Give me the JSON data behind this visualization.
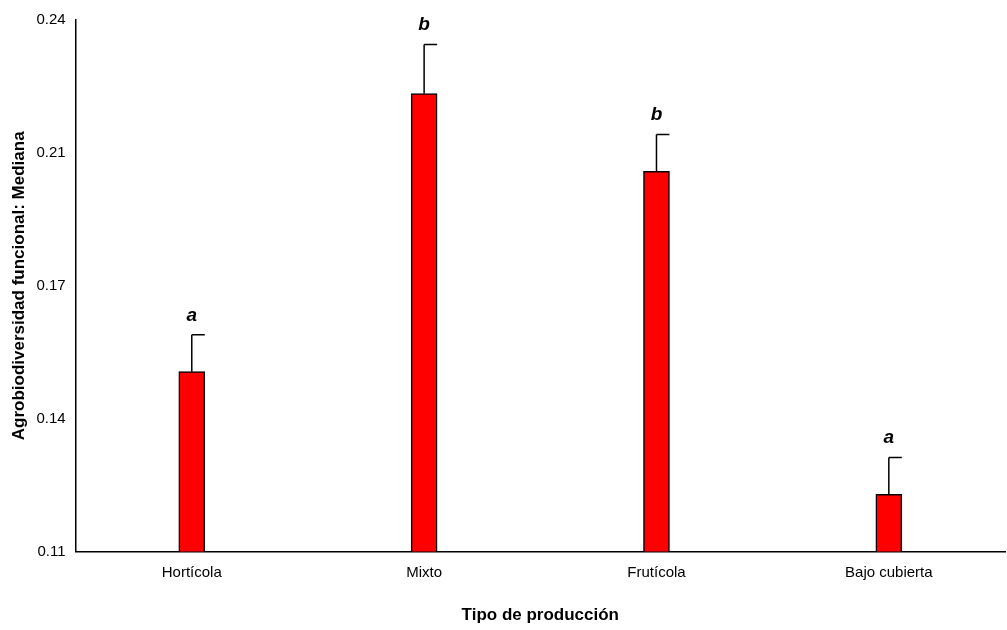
{
  "chart_data": {
    "type": "bar",
    "xlabel": "Tipo de producción",
    "ylabel": "Agrobiodiversidad funcional: Mediana",
    "categories": [
      "Hortícola",
      "Mixto",
      "Frutícola",
      "Bajo cubierta"
    ],
    "values": [
      0.154,
      0.222,
      0.203,
      0.124
    ],
    "errors": [
      [
        0.154,
        0.163
      ],
      [
        0.222,
        0.234
      ],
      [
        0.203,
        0.212
      ],
      [
        0.124,
        0.133
      ]
    ],
    "color": "#ff0000",
    "ylim": [
      0.11,
      0.24
    ],
    "yticks": [
      {
        "value": 0.11,
        "label": "0.11"
      },
      {
        "value": 0.1425,
        "label": "0.14"
      },
      {
        "value": 0.175,
        "label": "0.17"
      },
      {
        "value": 0.2075,
        "label": "0.21"
      },
      {
        "value": 0.24,
        "label": "0.24"
      }
    ],
    "annotations": [
      {
        "text": "a",
        "x": "Hortícola",
        "y": 0.163
      },
      {
        "text": "b",
        "x": "Mixto",
        "y": 0.234
      },
      {
        "text": "b",
        "x": "Frutícola",
        "y": 0.212
      },
      {
        "text": "a",
        "x": "Bajo cubierta",
        "y": 0.133
      }
    ],
    "grid": false,
    "legend": false
  }
}
